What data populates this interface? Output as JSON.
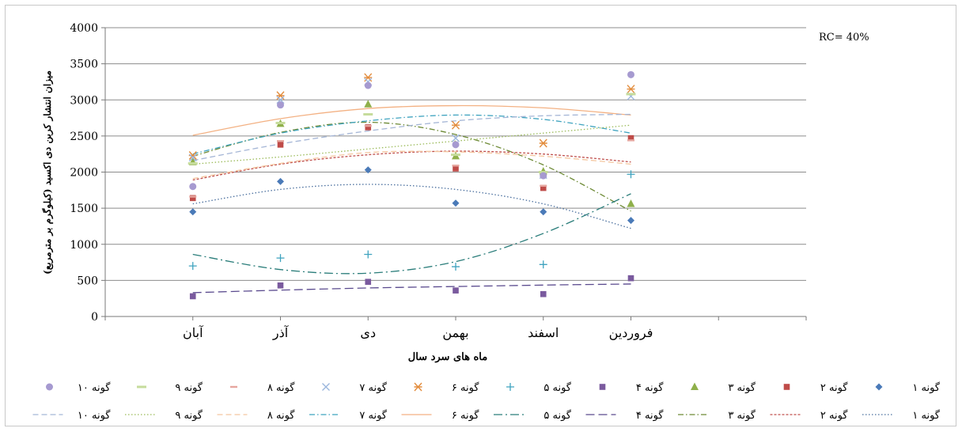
{
  "chart_data": {
    "type": "scatter",
    "title": "",
    "annotation": "RC= 40%",
    "xlabel": "ماه های سرد سال",
    "ylabel": "میزان انتشار کربن دی اکسید (کیلوگرم بر مترمربع)",
    "categories": [
      "آبان",
      "آذر",
      "دی",
      "بهمن",
      "اسفند",
      "فروردین"
    ],
    "ylim": [
      0,
      4000
    ],
    "yticks": [
      "0",
      "500",
      "1000",
      "1500",
      "2000",
      "2500",
      "3000",
      "3500",
      "4000"
    ],
    "grid": "horizontal",
    "legend_position": "bottom",
    "series": [
      {
        "name": "گونه ۱",
        "marker": "diamond",
        "color": "#4a7ab8",
        "values": [
          1450,
          1870,
          2030,
          1570,
          1450,
          1330
        ]
      },
      {
        "name": "گونه ۲",
        "marker": "square",
        "color": "#bf4b48",
        "values": [
          1640,
          2380,
          2620,
          2050,
          1780,
          2470
        ]
      },
      {
        "name": "گونه ۳",
        "marker": "triangle",
        "color": "#8fb04b",
        "values": [
          2140,
          2670,
          2940,
          2220,
          2010,
          1560
        ]
      },
      {
        "name": "گونه ۴",
        "marker": "square",
        "color": "#7a5a9e",
        "values": [
          280,
          430,
          480,
          360,
          310,
          530
        ]
      },
      {
        "name": "گونه ۵",
        "marker": "plus",
        "color": "#3fa3bf",
        "values": [
          700,
          810,
          860,
          690,
          720,
          1970
        ]
      },
      {
        "name": "گونه ۶",
        "marker": "star",
        "color": "#e38c3c",
        "values": [
          2230,
          3060,
          3310,
          2650,
          2400,
          3150
        ]
      },
      {
        "name": "گونه ۷",
        "marker": "x",
        "color": "#9bb6dd",
        "values": [
          2200,
          3000,
          3250,
          2470,
          1960,
          3050
        ]
      },
      {
        "name": "گونه ۸",
        "marker": "dash",
        "color": "#e6a69f",
        "values": [
          1660,
          2430,
          2640,
          2090,
          1810,
          2440
        ]
      },
      {
        "name": "گونه ۹",
        "marker": "bar",
        "color": "#c6dc9c",
        "values": [
          2120,
          2680,
          2800,
          2240,
          2000,
          3080
        ]
      },
      {
        "name": "گونه ۱۰",
        "marker": "circle",
        "color": "#a69ad0",
        "values": [
          1800,
          2930,
          3200,
          2380,
          1950,
          3350
        ]
      }
    ],
    "trendlines": [
      {
        "name": "گونه ۱",
        "style": "dotted",
        "color": "#4a6f9e",
        "values": [
          1560,
          1760,
          1830,
          1760,
          1560,
          1220
        ]
      },
      {
        "name": "گونه ۲",
        "style": "dashed-short",
        "color": "#c0504d",
        "values": [
          1890,
          2110,
          2240,
          2290,
          2250,
          2140
        ]
      },
      {
        "name": "گونه ۳",
        "style": "dash-dot",
        "color": "#6d8a35",
        "values": [
          2220,
          2550,
          2690,
          2520,
          2100,
          1460
        ]
      },
      {
        "name": "گونه ۴",
        "style": "long-dash",
        "color": "#5a4a8e",
        "values": [
          330,
          365,
          395,
          415,
          435,
          450
        ]
      },
      {
        "name": "گونه ۵",
        "style": "long-dash-dot",
        "color": "#2a7d7a",
        "values": [
          860,
          650,
          600,
          760,
          1150,
          1700
        ]
      },
      {
        "name": "گونه ۶",
        "style": "solid",
        "color": "#f3b183",
        "values": [
          2510,
          2740,
          2880,
          2920,
          2890,
          2790
        ]
      },
      {
        "name": "گونه ۷",
        "style": "dash-dot",
        "color": "#3fa3bf",
        "values": [
          2250,
          2540,
          2710,
          2790,
          2730,
          2540
        ]
      },
      {
        "name": "گونه ۸",
        "style": "dashed",
        "color": "#f4c7a0",
        "values": [
          1910,
          2120,
          2270,
          2280,
          2220,
          2110
        ]
      },
      {
        "name": "گونه ۹",
        "style": "dotted",
        "color": "#9bbb59",
        "values": [
          2110,
          2210,
          2320,
          2430,
          2540,
          2650
        ]
      },
      {
        "name": "گونه ۱۰",
        "style": "dashed",
        "color": "#a5b6d6",
        "values": [
          2160,
          2390,
          2570,
          2710,
          2780,
          2800
        ]
      }
    ]
  }
}
